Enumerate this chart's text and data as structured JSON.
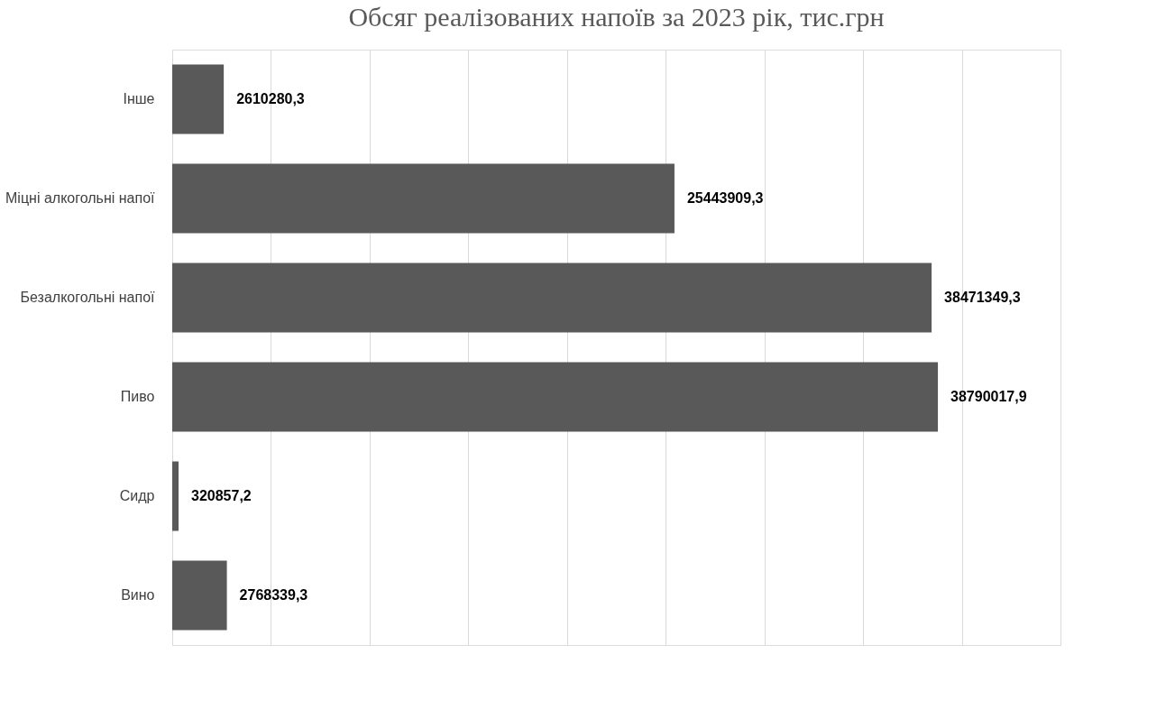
{
  "chart_data": {
    "type": "bar",
    "orientation": "horizontal",
    "title": "Обсяг реалізованих напоїв за 2023 рік, тис.грн",
    "categories": [
      "Інше",
      "Міцні алкогольні напої",
      "Безалкогольні напої",
      "Пиво",
      "Сидр",
      "Вино"
    ],
    "values": [
      2610280.3,
      25443909.3,
      38471349.3,
      38790017.9,
      320857.2,
      2768339.3
    ],
    "value_labels": [
      "2610280,3",
      "25443909,3",
      "38471349,3",
      "38790017,9",
      "320857,2",
      "2768339,3"
    ],
    "color": "#595959",
    "xlim": [
      0,
      45000000
    ],
    "xticks": [
      {
        "value": 0,
        "label": null
      },
      {
        "value": 5000000,
        "label": null
      },
      {
        "value": 10000000,
        "label": null
      },
      {
        "value": 15000000,
        "label": null
      },
      {
        "value": 20000000,
        "label": null
      },
      {
        "value": 25000000,
        "label": null
      },
      {
        "value": 30000000,
        "label": null
      },
      {
        "value": 35000000,
        "label": null
      },
      {
        "value": 40000000,
        "label": null
      },
      {
        "value": 45000000,
        "label": null
      }
    ],
    "grid": "x",
    "tick_labels": "y"
  }
}
